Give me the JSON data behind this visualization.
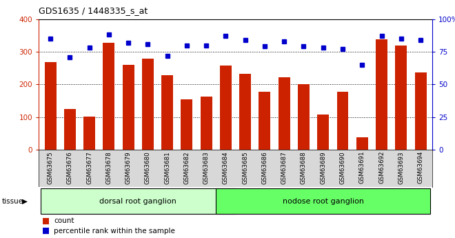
{
  "title": "GDS1635 / 1448335_s_at",
  "samples": [
    "GSM63675",
    "GSM63676",
    "GSM63677",
    "GSM63678",
    "GSM63679",
    "GSM63680",
    "GSM63681",
    "GSM63682",
    "GSM63683",
    "GSM63684",
    "GSM63685",
    "GSM63686",
    "GSM63687",
    "GSM63688",
    "GSM63689",
    "GSM63690",
    "GSM63691",
    "GSM63692",
    "GSM63693",
    "GSM63694"
  ],
  "counts": [
    268,
    125,
    102,
    328,
    260,
    278,
    228,
    155,
    163,
    258,
    233,
    178,
    222,
    200,
    108,
    178,
    38,
    338,
    320,
    237
  ],
  "percentiles": [
    85,
    71,
    78,
    88,
    82,
    81,
    72,
    80,
    80,
    87,
    84,
    79,
    83,
    79,
    78,
    77,
    65,
    87,
    85,
    84
  ],
  "groups": [
    {
      "label": "dorsal root ganglion",
      "start": 0,
      "end": 9,
      "color": "#ccffcc"
    },
    {
      "label": "nodose root ganglion",
      "start": 9,
      "end": 19,
      "color": "#66ff66"
    }
  ],
  "bar_color": "#cc2200",
  "dot_color": "#0000cc",
  "ylim_left": [
    0,
    400
  ],
  "ylim_right": [
    0,
    100
  ],
  "yticks_left": [
    0,
    100,
    200,
    300,
    400
  ],
  "yticks_right": [
    0,
    25,
    50,
    75,
    100
  ],
  "tissue_label": "tissue",
  "legend_count_label": "count",
  "legend_pct_label": "percentile rank within the sample"
}
